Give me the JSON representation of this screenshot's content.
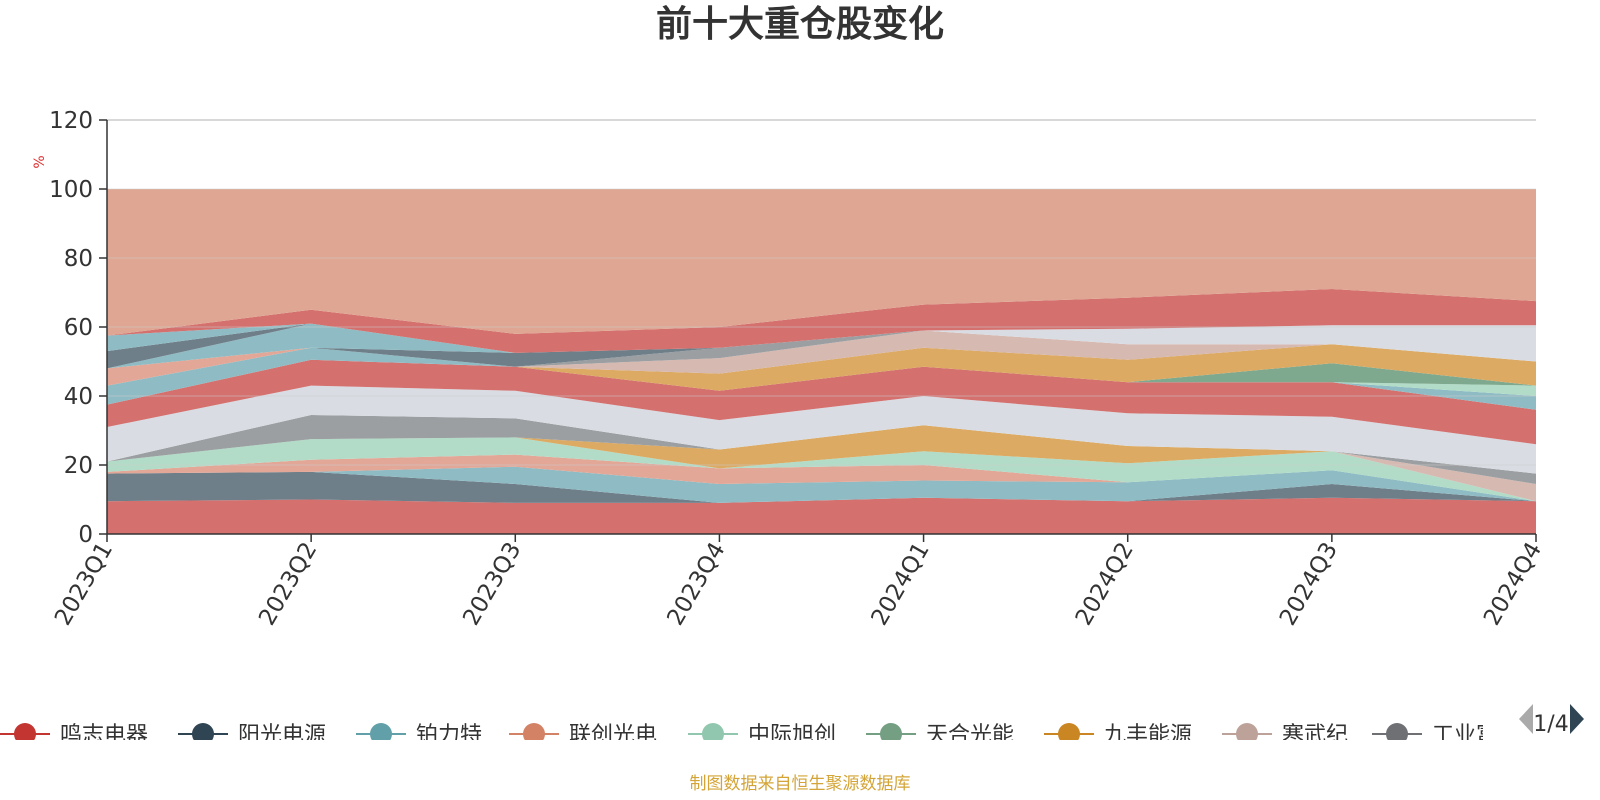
{
  "chart_data": {
    "type": "area",
    "title": "前十大重仓股变化",
    "ylabel": "%",
    "xlabel": "",
    "ylim": [
      0,
      120
    ],
    "yticks": [
      0,
      20,
      40,
      60,
      80,
      100,
      120
    ],
    "grid": true,
    "stacked": true,
    "categories": [
      "2023Q1",
      "2023Q2",
      "2023Q3",
      "2023Q4",
      "2024Q1",
      "2024Q2",
      "2024Q3",
      "2024Q4"
    ],
    "layers": [
      {
        "color": "#d4716f",
        "lower": [
          0,
          0,
          0,
          0,
          0,
          0,
          0,
          0
        ],
        "upper": [
          9.5,
          10,
          9,
          9,
          10.5,
          9.5,
          10.5,
          9.5
        ]
      },
      {
        "color": "#6f7f8a",
        "lower": [
          9.5,
          10,
          9,
          9,
          10.5,
          9.5,
          10.5,
          9.5
        ],
        "upper": [
          17.5,
          18,
          14.5,
          9,
          10.5,
          9.5,
          14.5,
          9.5
        ]
      },
      {
        "color": "#8fbcc4",
        "lower": [
          17.5,
          18,
          14.5,
          9,
          10.5,
          9.5,
          14.5,
          9.5
        ],
        "upper": [
          17.5,
          18,
          19.5,
          14.5,
          15.5,
          15,
          18.5,
          9.5
        ]
      },
      {
        "color": "#e3a797",
        "lower": [
          17.5,
          18,
          19.5,
          14.5,
          15.5,
          15,
          18.5,
          9.5
        ],
        "upper": [
          18,
          21.5,
          23,
          19,
          20,
          15,
          18.5,
          9.5
        ]
      },
      {
        "color": "#b2dcc7",
        "lower": [
          18,
          21.5,
          23,
          19,
          20,
          15,
          18.5,
          9.5
        ],
        "upper": [
          21,
          27.5,
          28,
          19,
          24,
          20.5,
          24,
          9.5
        ]
      },
      {
        "color": "#dcaa63",
        "lower": [
          21,
          27.5,
          28,
          19,
          24,
          20.5,
          24,
          9.5
        ],
        "upper": [
          21,
          27.5,
          28,
          24.5,
          31.5,
          25.5,
          24,
          9.5
        ]
      },
      {
        "color": "#d6b9b1",
        "lower": [
          21,
          27.5,
          28,
          24.5,
          31.5,
          25.5,
          24,
          9.5
        ],
        "upper": [
          21,
          27.5,
          28,
          24.5,
          31.5,
          25.5,
          24,
          14.5
        ]
      },
      {
        "color": "#9b9fa2",
        "lower": [
          21,
          27.5,
          28,
          24.5,
          31.5,
          25.5,
          24,
          14.5
        ],
        "upper": [
          21,
          34.5,
          33.5,
          24.5,
          31.5,
          25.5,
          24,
          17.5
        ]
      },
      {
        "color": "#d9dde3",
        "lower": [
          21,
          34.5,
          33.5,
          24.5,
          31.5,
          25.5,
          24,
          17.5
        ],
        "upper": [
          31,
          43,
          41.5,
          33,
          40,
          35,
          34,
          26
        ]
      },
      {
        "color": "#d4716f",
        "lower": [
          31,
          43,
          41.5,
          33,
          40,
          35,
          34,
          26
        ],
        "upper": [
          37.5,
          50.5,
          48.5,
          41.5,
          48.5,
          44,
          44,
          36
        ]
      },
      {
        "color": "#8fbcc4",
        "lower": [
          37.5,
          50.5,
          48.5,
          41.5,
          48.5,
          44,
          44,
          36
        ],
        "upper": [
          37.5,
          50.5,
          48.5,
          41.5,
          48.5,
          44,
          44,
          40
        ]
      },
      {
        "color": "#b2dcc7",
        "lower": [
          37.5,
          50.5,
          48.5,
          41.5,
          48.5,
          44,
          44,
          40
        ],
        "upper": [
          37.5,
          50.5,
          48.5,
          41.5,
          48.5,
          44,
          44,
          43
        ]
      },
      {
        "color": "#7fa98f",
        "lower": [
          37.5,
          50.5,
          48.5,
          41.5,
          48.5,
          44,
          44,
          43
        ],
        "upper": [
          37.5,
          50.5,
          48.5,
          41.5,
          48.5,
          44,
          49.5,
          43
        ]
      },
      {
        "color": "#dcaa63",
        "lower": [
          37.5,
          50.5,
          48.5,
          41.5,
          48.5,
          44,
          49.5,
          43
        ],
        "upper": [
          37.5,
          50.5,
          48.5,
          46.5,
          54,
          50.5,
          55,
          50
        ]
      },
      {
        "color": "#d6b9b1",
        "lower": [
          37.5,
          50.5,
          48.5,
          46.5,
          54,
          50.5,
          55,
          50
        ],
        "upper": [
          37.5,
          50.5,
          48.5,
          51,
          59,
          55,
          55,
          50
        ]
      },
      {
        "color": "#9b9fa2",
        "lower": [
          37.5,
          50.5,
          48.5,
          51,
          59,
          55,
          55,
          50
        ],
        "upper": [
          37.5,
          50.5,
          48.5,
          54,
          59,
          55,
          55,
          50
        ]
      },
      {
        "color": "#8fbcc4",
        "lower": [
          37.5,
          50.5,
          48.5,
          54,
          59,
          55,
          55,
          50
        ],
        "upper": [
          43,
          54,
          48.5,
          54,
          59,
          55,
          55,
          50
        ]
      },
      {
        "color": "#6f7f8a",
        "lower": [
          43,
          54,
          48.5,
          54,
          59,
          55,
          55,
          50
        ],
        "upper": [
          43,
          54,
          52.5,
          54,
          59,
          55,
          55,
          50
        ]
      },
      {
        "color": "#e3a797",
        "lower": [
          43,
          54,
          52.5,
          54,
          59,
          55,
          55,
          50
        ],
        "upper": [
          48,
          54,
          52.5,
          54,
          59,
          55,
          55,
          50
        ]
      },
      {
        "color": "#8fbcc4",
        "lower": [
          48,
          54,
          52.5,
          54,
          59,
          55,
          55,
          50
        ],
        "upper": [
          48,
          61,
          52.5,
          54,
          59,
          55,
          55,
          50
        ]
      },
      {
        "color": "#d9dde3",
        "lower": [
          48,
          61,
          52.5,
          54,
          59,
          55,
          55,
          50
        ],
        "upper": [
          48,
          61,
          52.5,
          54,
          59,
          59.5,
          60.5,
          60.5
        ]
      },
      {
        "color": "#6f7f8a",
        "lower": [
          48,
          61,
          52.5,
          54,
          59,
          59.5,
          60.5,
          60.5
        ],
        "upper": [
          53,
          61,
          52.5,
          54,
          59,
          59.5,
          60.5,
          60.5
        ]
      },
      {
        "color": "#8fbcc4",
        "lower": [
          53,
          61,
          52.5,
          54,
          59,
          59.5,
          60.5,
          60.5
        ],
        "upper": [
          57.5,
          61,
          52.5,
          54,
          59,
          59.5,
          60.5,
          60.5
        ]
      },
      {
        "color": "#d4716f",
        "lower": [
          57.5,
          61,
          52.5,
          54,
          59,
          59.5,
          60.5,
          60.5
        ],
        "upper": [
          57.5,
          65,
          58,
          60,
          66.5,
          68.5,
          71,
          67.5
        ]
      },
      {
        "color": "#dfa793",
        "lower": [
          57.5,
          65,
          58,
          60,
          66.5,
          68.5,
          71,
          67.5
        ],
        "upper": [
          100,
          100,
          100,
          100,
          100,
          100,
          100,
          100
        ]
      }
    ],
    "legend": {
      "placement": "bottom",
      "items": [
        {
          "name": "鸣志电器",
          "color": "#c23531"
        },
        {
          "name": "阳光电源",
          "color": "#2f4554"
        },
        {
          "name": "铂力特",
          "color": "#61a0a8"
        },
        {
          "name": "联创光电",
          "color": "#d48265"
        },
        {
          "name": "中际旭创",
          "color": "#91c7ae"
        },
        {
          "name": "天合光能",
          "color": "#749f83"
        },
        {
          "name": "九丰能源",
          "color": "#ca8622"
        },
        {
          "name": "寒武纪",
          "color": "#bda29a"
        },
        {
          "name": "工业富联",
          "color": "#6e7074"
        }
      ],
      "page": "1/4"
    }
  },
  "source": "制图数据来自恒生聚源数据库",
  "colors": {
    "title": "#333333",
    "axis": "#333333",
    "ylabel": "#e03030",
    "grid": "#cccccc",
    "source": "#d4a437",
    "nav_prev": "#aaaaaa",
    "nav_next": "#2f4554"
  }
}
